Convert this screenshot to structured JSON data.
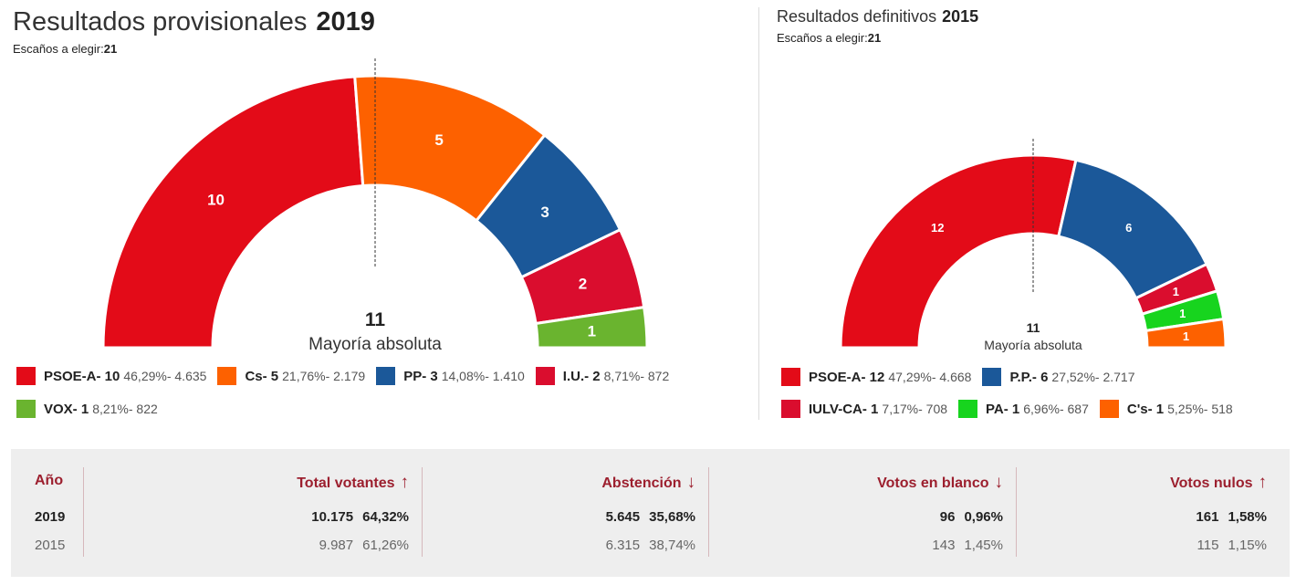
{
  "chart_data": [
    {
      "type": "hemicycle",
      "title": "Resultados provisionales",
      "year": "2019",
      "seats_label": "Escaños a elegir:",
      "seats_total": "21",
      "majority": {
        "value": "11",
        "label": "Mayoría absoluta"
      },
      "series": [
        {
          "name": "PSOE-A",
          "seats": 10,
          "percent": "46,29%",
          "votes": "4.635",
          "color": "#e30b18"
        },
        {
          "name": "Cs",
          "seats": 5,
          "percent": "21,76%",
          "votes": "2.179",
          "color": "#fd6100"
        },
        {
          "name": "PP",
          "seats": 3,
          "percent": "14,08%",
          "votes": "1.410",
          "color": "#1b5899"
        },
        {
          "name": "I.U.",
          "seats": 2,
          "percent": "8,71%",
          "votes": "872",
          "color": "#da0d2e"
        },
        {
          "name": "VOX",
          "seats": 1,
          "percent": "8,21%",
          "votes": "822",
          "color": "#6ab42f"
        }
      ]
    },
    {
      "type": "hemicycle",
      "title": "Resultados definitivos",
      "year": "2015",
      "seats_label": "Escaños a elegir:",
      "seats_total": "21",
      "majority": {
        "value": "11",
        "label": "Mayoría absoluta"
      },
      "series": [
        {
          "name": "PSOE-A",
          "seats": 12,
          "percent": "47,29%",
          "votes": "4.668",
          "color": "#e30b18"
        },
        {
          "name": "P.P.",
          "seats": 6,
          "percent": "27,52%",
          "votes": "2.717",
          "color": "#1b5899"
        },
        {
          "name": "IULV-CA",
          "seats": 1,
          "percent": "7,17%",
          "votes": "708",
          "color": "#da0d2e"
        },
        {
          "name": "PA",
          "seats": 1,
          "percent": "6,96%",
          "votes": "687",
          "color": "#17d41e"
        },
        {
          "name": "C's",
          "seats": 1,
          "percent": "5,25%",
          "votes": "518",
          "color": "#fd6100"
        }
      ]
    }
  ],
  "stats": {
    "year_header": "Año",
    "columns": [
      {
        "label": "Total votantes",
        "trend": "↑",
        "cur_value": "10.175",
        "cur_pct": "64,32%",
        "prev_value": "9.987",
        "prev_pct": "61,26%"
      },
      {
        "label": "Abstención",
        "trend": "↓",
        "cur_value": "5.645",
        "cur_pct": "35,68%",
        "prev_value": "6.315",
        "prev_pct": "38,74%"
      },
      {
        "label": "Votos en blanco",
        "trend": "↓",
        "cur_value": "96",
        "cur_pct": "0,96%",
        "prev_value": "143",
        "prev_pct": "1,45%"
      },
      {
        "label": "Votos nulos",
        "trend": "↑",
        "cur_value": "161",
        "cur_pct": "1,58%",
        "prev_value": "115",
        "prev_pct": "1,15%"
      }
    ],
    "rows": [
      {
        "year": "2019"
      },
      {
        "year": "2015"
      }
    ]
  }
}
